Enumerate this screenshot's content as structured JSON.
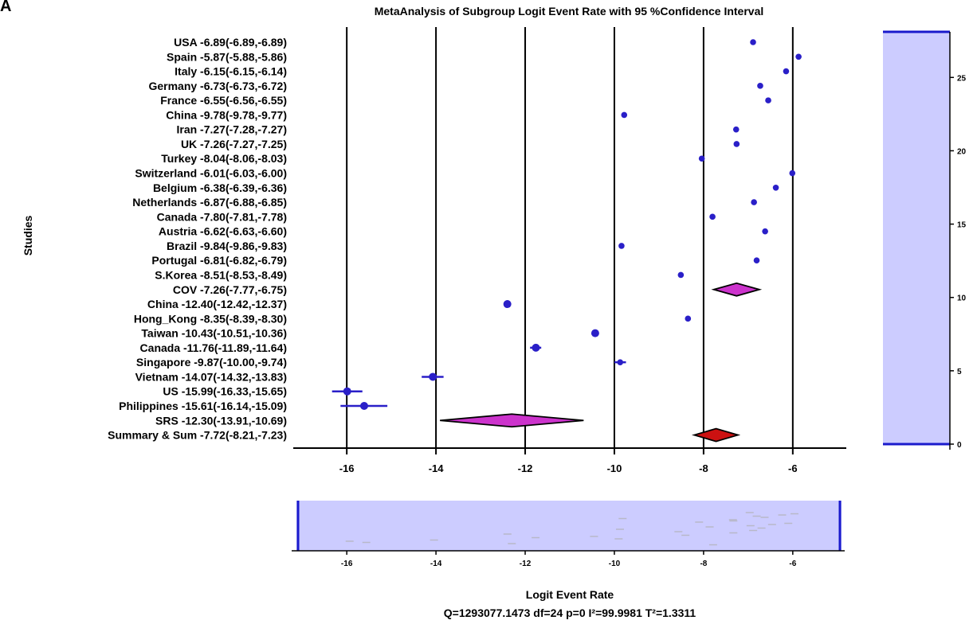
{
  "panel_letter": "A",
  "chart_data": {
    "type": "forest",
    "title": "MetaAnalysis of Subgroup Logit Event Rate with 95 %Confidence Interval",
    "ylabel": "Studies",
    "xlabel": "Logit Event Rate",
    "footer": "Q=1293077.1473 df=24 p=0 I²=99.9981 T²=1.3311",
    "xlim": [
      -17.2,
      -4.8
    ],
    "xticks": [
      -16,
      -14,
      -12,
      -10,
      -8,
      -6
    ],
    "xtick_labels": [
      "-16",
      "-14",
      "-12",
      "-10",
      "-8",
      "-6"
    ],
    "grid": "vertical",
    "colors": {
      "point": "#2a1fc8",
      "subgroup_diamond": "#cc33cc",
      "summary_diamond": "#cc1111",
      "scroll_panel": "#ccccff",
      "scroll_border": "#1a1acc"
    },
    "studies": [
      {
        "label": "USA -6.89(-6.89,-6.89)",
        "est": -6.89,
        "lo": -6.89,
        "hi": -6.89,
        "kind": "point"
      },
      {
        "label": "Spain -5.87(-5.88,-5.86)",
        "est": -5.87,
        "lo": -5.88,
        "hi": -5.86,
        "kind": "point"
      },
      {
        "label": "Italy -6.15(-6.15,-6.14)",
        "est": -6.15,
        "lo": -6.15,
        "hi": -6.14,
        "kind": "point"
      },
      {
        "label": "Germany -6.73(-6.73,-6.72)",
        "est": -6.73,
        "lo": -6.73,
        "hi": -6.72,
        "kind": "point"
      },
      {
        "label": "France -6.55(-6.56,-6.55)",
        "est": -6.55,
        "lo": -6.56,
        "hi": -6.55,
        "kind": "point"
      },
      {
        "label": "China -9.78(-9.78,-9.77)",
        "est": -9.78,
        "lo": -9.78,
        "hi": -9.77,
        "kind": "point"
      },
      {
        "label": "Iran -7.27(-7.28,-7.27)",
        "est": -7.27,
        "lo": -7.28,
        "hi": -7.27,
        "kind": "point"
      },
      {
        "label": "UK -7.26(-7.27,-7.25)",
        "est": -7.26,
        "lo": -7.27,
        "hi": -7.25,
        "kind": "point"
      },
      {
        "label": "Turkey -8.04(-8.06,-8.03)",
        "est": -8.04,
        "lo": -8.06,
        "hi": -8.03,
        "kind": "point"
      },
      {
        "label": "Switzerland -6.01(-6.03,-6.00)",
        "est": -6.01,
        "lo": -6.03,
        "hi": -6.0,
        "kind": "point"
      },
      {
        "label": "Belgium -6.38(-6.39,-6.36)",
        "est": -6.38,
        "lo": -6.39,
        "hi": -6.36,
        "kind": "point"
      },
      {
        "label": "Netherlands -6.87(-6.88,-6.85)",
        "est": -6.87,
        "lo": -6.88,
        "hi": -6.85,
        "kind": "point"
      },
      {
        "label": "Canada -7.80(-7.81,-7.78)",
        "est": -7.8,
        "lo": -7.81,
        "hi": -7.78,
        "kind": "point"
      },
      {
        "label": "Austria -6.62(-6.63,-6.60)",
        "est": -6.62,
        "lo": -6.63,
        "hi": -6.6,
        "kind": "point"
      },
      {
        "label": "Brazil -9.84(-9.86,-9.83)",
        "est": -9.84,
        "lo": -9.86,
        "hi": -9.83,
        "kind": "point"
      },
      {
        "label": "Portugal -6.81(-6.82,-6.79)",
        "est": -6.81,
        "lo": -6.82,
        "hi": -6.79,
        "kind": "point"
      },
      {
        "label": "S.Korea -8.51(-8.53,-8.49)",
        "est": -8.51,
        "lo": -8.53,
        "hi": -8.49,
        "kind": "point"
      },
      {
        "label": "COV -7.26(-7.77,-6.75)",
        "est": -7.26,
        "lo": -7.77,
        "hi": -6.75,
        "kind": "subgroup"
      },
      {
        "label": "China -12.40(-12.42,-12.37)",
        "est": -12.4,
        "lo": -12.42,
        "hi": -12.37,
        "kind": "point"
      },
      {
        "label": "Hong_Kong -8.35(-8.39,-8.30)",
        "est": -8.35,
        "lo": -8.39,
        "hi": -8.3,
        "kind": "point"
      },
      {
        "label": "Taiwan -10.43(-10.51,-10.36)",
        "est": -10.43,
        "lo": -10.51,
        "hi": -10.36,
        "kind": "point"
      },
      {
        "label": "Canada -11.76(-11.89,-11.64)",
        "est": -11.76,
        "lo": -11.89,
        "hi": -11.64,
        "kind": "point"
      },
      {
        "label": "Singapore -9.87(-10.00,-9.74)",
        "est": -9.87,
        "lo": -10.0,
        "hi": -9.74,
        "kind": "point"
      },
      {
        "label": "Vietnam -14.07(-14.32,-13.83)",
        "est": -14.07,
        "lo": -14.32,
        "hi": -13.83,
        "kind": "point"
      },
      {
        "label": "US -15.99(-16.33,-15.65)",
        "est": -15.99,
        "lo": -16.33,
        "hi": -15.65,
        "kind": "point"
      },
      {
        "label": "Philippines -15.61(-16.14,-15.09)",
        "est": -15.61,
        "lo": -16.14,
        "hi": -15.09,
        "kind": "point"
      },
      {
        "label": "SRS -12.30(-13.91,-10.69)",
        "est": -12.3,
        "lo": -13.91,
        "hi": -10.69,
        "kind": "subgroup"
      },
      {
        "label": "Summary & Sum -7.72(-8.21,-7.23)",
        "est": -7.72,
        "lo": -8.21,
        "hi": -7.23,
        "kind": "summary"
      }
    ],
    "vertical_scroller": {
      "ticks": [
        0,
        5,
        10,
        15,
        20,
        25
      ],
      "tick_labels": [
        "0",
        "5",
        "10",
        "15",
        "20",
        "25"
      ],
      "range": [
        0,
        28
      ]
    },
    "horizontal_scroller": {
      "ticks": [
        -16,
        -14,
        -12,
        -10,
        -8,
        -6
      ],
      "tick_labels": [
        "-16",
        "-14",
        "-12",
        "-10",
        "-8",
        "-6"
      ]
    }
  }
}
